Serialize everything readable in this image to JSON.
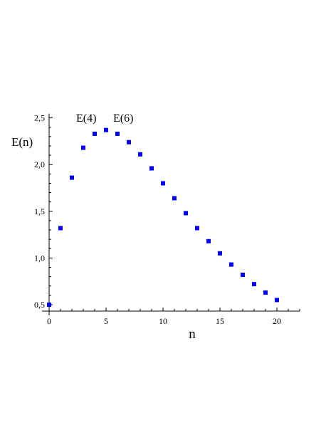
{
  "chart_data": {
    "type": "scatter",
    "title": "",
    "xlabel": "n",
    "ylabel": "E(n)",
    "xlim": [
      0,
      22
    ],
    "ylim": [
      0.5,
      2.5
    ],
    "x_ticks": [
      0,
      5,
      10,
      15,
      20
    ],
    "x_tick_labels": [
      "0",
      "5",
      "10",
      "15",
      "20"
    ],
    "y_ticks": [
      0.5,
      1.0,
      1.5,
      2.0,
      2.5
    ],
    "y_tick_labels": [
      "0,5",
      "1,0",
      "1,5",
      "2,0",
      "2,5"
    ],
    "grid": false,
    "legend": "none",
    "marker": "square",
    "marker_color": "#0000ff",
    "series": [
      {
        "x": [
          0,
          1,
          2,
          3,
          4,
          5,
          6,
          7,
          8,
          9,
          10,
          11,
          12,
          13,
          14,
          15,
          16,
          17,
          18,
          19,
          20
        ],
        "y": [
          0.5,
          1.32,
          1.86,
          2.18,
          2.33,
          2.37,
          2.33,
          2.24,
          2.11,
          1.96,
          1.8,
          1.64,
          1.48,
          1.32,
          1.18,
          1.05,
          0.93,
          0.82,
          0.72,
          0.63,
          0.55
        ]
      }
    ],
    "annotations": [
      {
        "text": "E(4)",
        "x": 4,
        "y": 2.33
      },
      {
        "text": "E(6)",
        "x": 6,
        "y": 2.33
      }
    ]
  }
}
